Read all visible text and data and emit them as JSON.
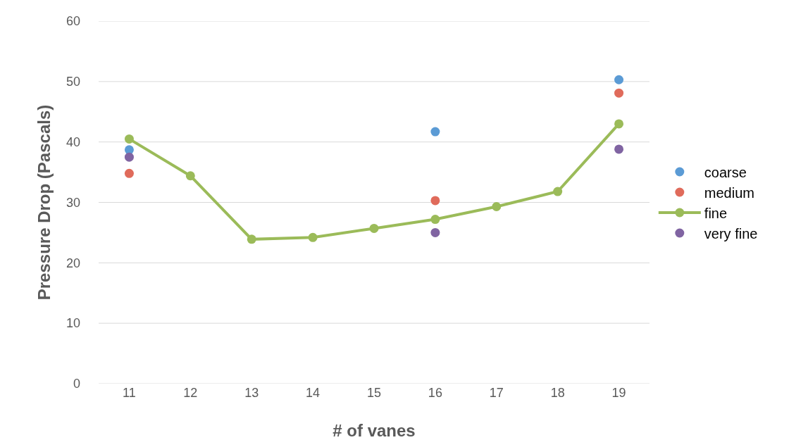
{
  "chart_data": {
    "type": "line",
    "xlabel": "# of vanes",
    "ylabel": "Pressure Drop (Pascals)",
    "categories": [
      "11",
      "12",
      "13",
      "14",
      "15",
      "16",
      "17",
      "18",
      "19"
    ],
    "series": [
      {
        "name": "coarse",
        "type": "scatter",
        "color": "#5b9bd5",
        "values": [
          38.7,
          null,
          null,
          null,
          null,
          41.7,
          null,
          null,
          50.3
        ]
      },
      {
        "name": "medium",
        "type": "scatter",
        "color": "#e06b5b",
        "values": [
          34.8,
          null,
          null,
          null,
          null,
          30.3,
          null,
          null,
          48.1
        ]
      },
      {
        "name": "fine",
        "color": "#9bbb59",
        "values": [
          40.5,
          34.4,
          23.9,
          24.2,
          25.7,
          27.2,
          29.3,
          31.8,
          43
        ]
      },
      {
        "name": "very fine",
        "type": "scatter",
        "color": "#8064a2",
        "values": [
          37.5,
          null,
          null,
          null,
          null,
          25,
          null,
          null,
          38.8
        ]
      }
    ],
    "ylim": [
      0,
      60
    ],
    "yticks": [
      0,
      10,
      20,
      30,
      40,
      50,
      60
    ],
    "grid": "y",
    "legend": "right",
    "marker": "circle",
    "line_style": "solid"
  }
}
